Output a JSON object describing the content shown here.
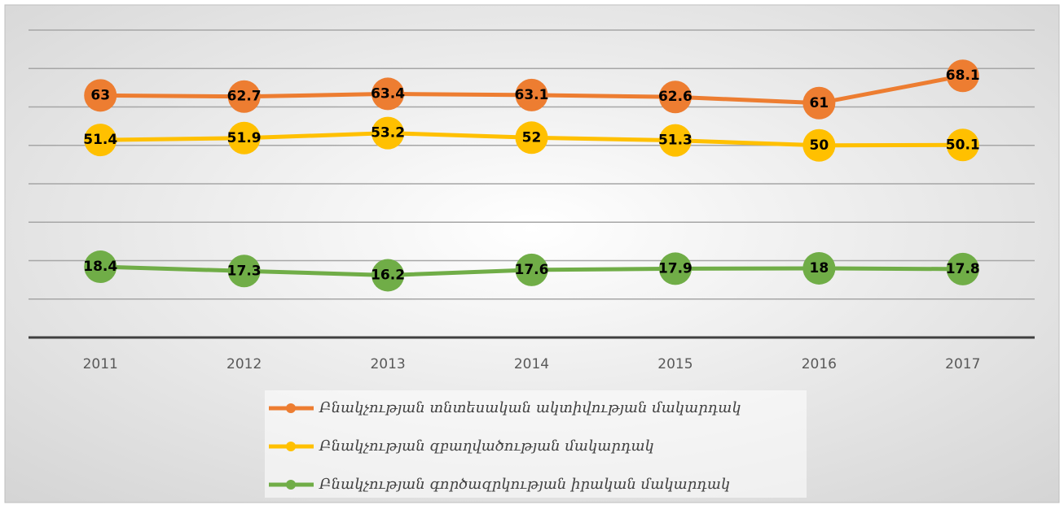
{
  "chart_data": {
    "type": "line",
    "categories": [
      "2011",
      "2012",
      "2013",
      "2014",
      "2015",
      "2016",
      "2017"
    ],
    "series": [
      {
        "name": "Բնակչության տնտեսական ակտիվության մակարդակ",
        "color": "#ED7D31",
        "values": [
          63,
          62.7,
          63.4,
          63.1,
          62.6,
          61,
          68.1
        ]
      },
      {
        "name": "Բնակչության զբաղվածության մակարդակ",
        "color": "#FFC000",
        "values": [
          51.4,
          51.9,
          53.2,
          52,
          51.3,
          50,
          50.1
        ]
      },
      {
        "name": "Բնակչության գործազրկության իրական մակարդակ",
        "color": "#70AD47",
        "values": [
          18.4,
          17.3,
          16.2,
          17.6,
          17.9,
          18,
          17.8
        ]
      }
    ],
    "ylim": [
      0,
      80
    ],
    "yticks": [
      0,
      10,
      20,
      30,
      40,
      50,
      60,
      70,
      80
    ],
    "grid": true,
    "legend": "bottom"
  }
}
